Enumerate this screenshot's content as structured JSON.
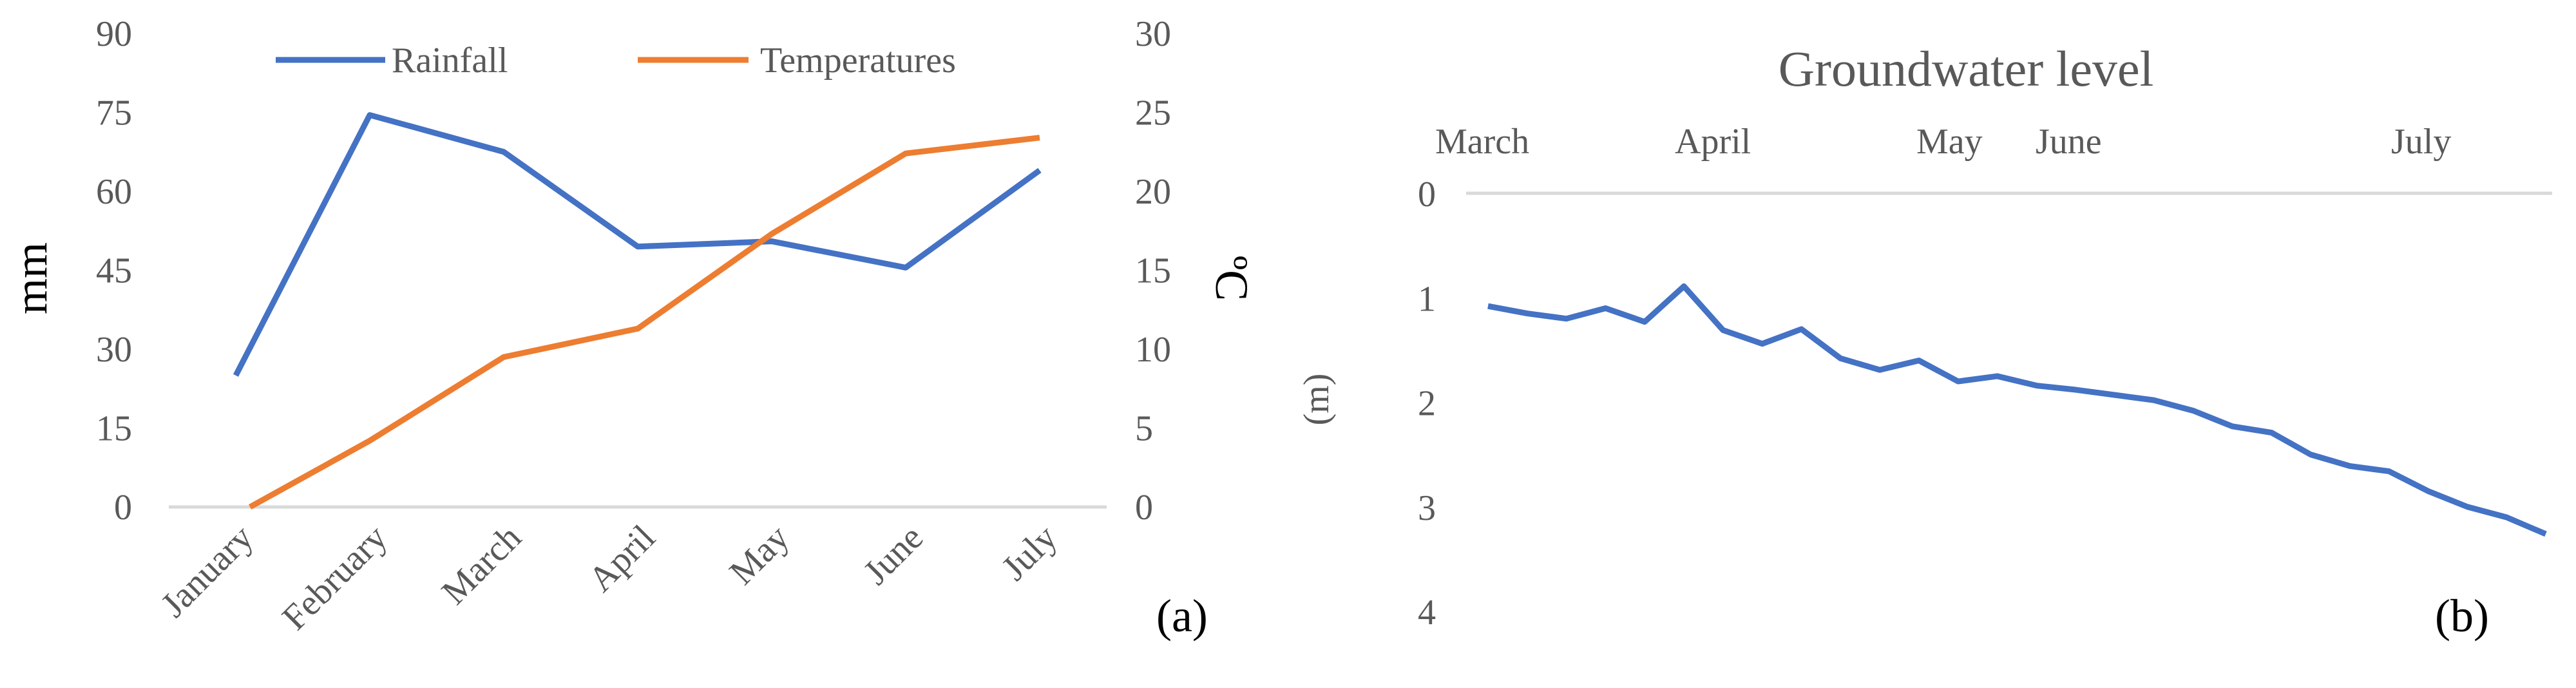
{
  "colors": {
    "rainfall": "#4472C4",
    "temperatures": "#ED7D31",
    "groundwater": "#4472C4",
    "gridline": "#D9D9D9",
    "text": "#595959"
  },
  "chart_data": [
    {
      "type": "line",
      "panel_label": "(a)",
      "categories": [
        "January",
        "February",
        "March",
        "April",
        "May",
        "June",
        "July"
      ],
      "series": [
        {
          "name": "Rainfall",
          "axis": "left",
          "values": [
            25,
            74.5,
            67.5,
            49.5,
            50.5,
            45.5,
            64
          ]
        },
        {
          "name": "Temperatures",
          "axis": "right",
          "values": [
            -0.5,
            4.2,
            9.5,
            11.3,
            17.3,
            22.4,
            23.4
          ]
        }
      ],
      "ylabel": "mm",
      "y2label": "ºC",
      "ylim": [
        0,
        90
      ],
      "yticks": [
        "0",
        "15",
        "30",
        "45",
        "60",
        "75",
        "90"
      ],
      "y2lim": [
        0,
        30
      ],
      "y2ticks": [
        "0",
        "5",
        "10",
        "15",
        "20",
        "25",
        "30"
      ],
      "legend": {
        "placement": "top",
        "entries": [
          "Rainfall",
          "Temperatures"
        ]
      },
      "grid": false
    },
    {
      "type": "line",
      "panel_label": "(b)",
      "title": "Groundwater level",
      "ylabel": "(m)",
      "ylim": [
        0,
        4
      ],
      "y_inverted": true,
      "yticks": [
        "0",
        "1",
        "2",
        "3",
        "4"
      ],
      "month_labels": [
        "March",
        "April",
        "May",
        "June",
        "July"
      ],
      "series": [
        {
          "values": [
            1.08,
            1.15,
            1.2,
            1.1,
            1.23,
            0.89,
            1.31,
            1.44,
            1.3,
            1.58,
            1.69,
            1.6,
            1.8,
            1.75,
            1.84,
            1.88,
            1.93,
            1.98,
            2.08,
            2.23,
            2.29,
            2.5,
            2.61,
            2.66,
            2.85,
            3.0,
            3.1,
            3.26
          ]
        }
      ],
      "grid": false
    }
  ]
}
